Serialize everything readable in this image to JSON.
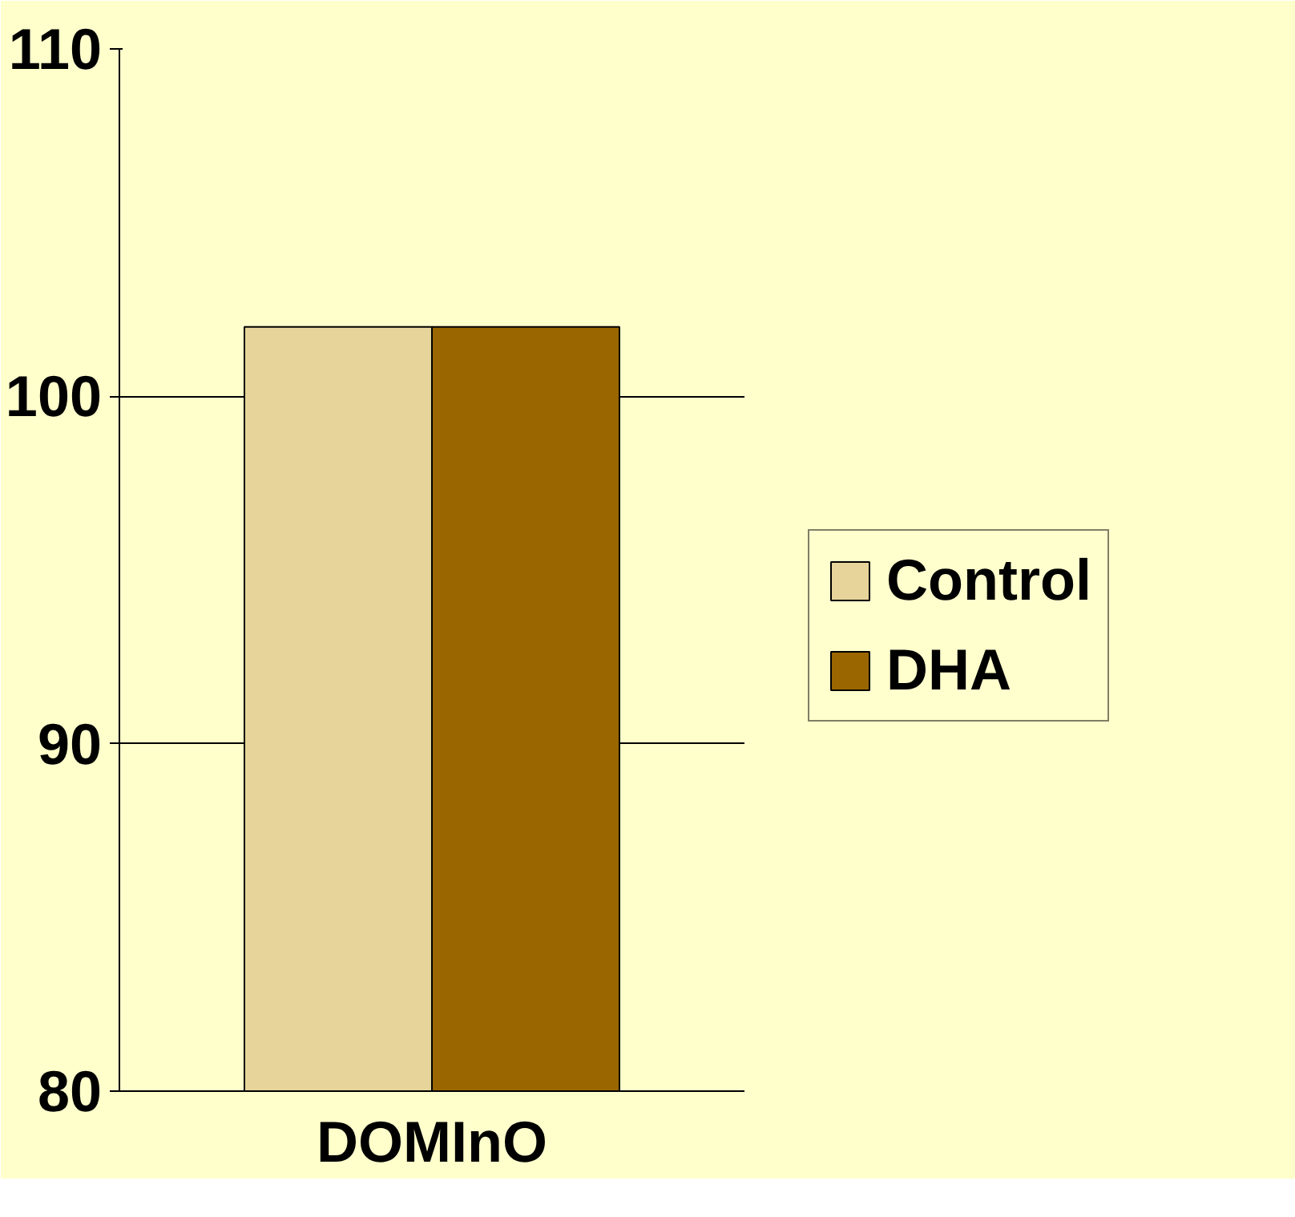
{
  "chart_data": {
    "type": "bar",
    "categories": [
      "DOMInO"
    ],
    "series": [
      {
        "name": "Control",
        "color": "#e6d49a",
        "values": [
          102
        ]
      },
      {
        "name": "DHA",
        "color": "#996600",
        "values": [
          102
        ]
      }
    ],
    "ylim": [
      80,
      110
    ],
    "yticks": [
      80,
      90,
      100,
      110
    ],
    "grid": "y",
    "legend": "right"
  }
}
